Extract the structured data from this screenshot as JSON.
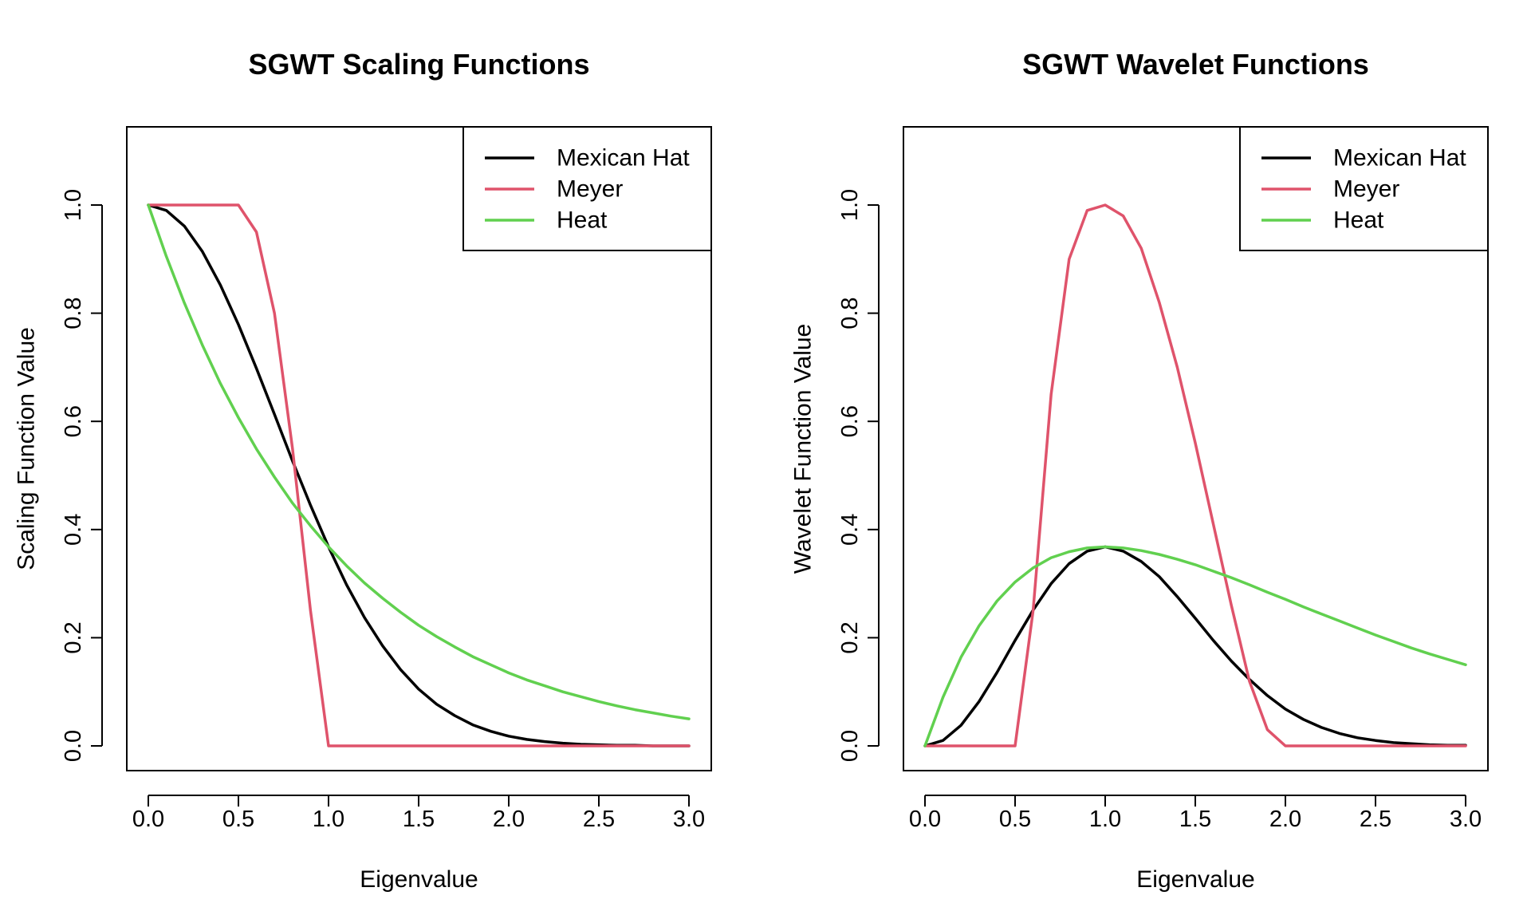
{
  "colors": {
    "mexican_hat": "#000000",
    "meyer": "#DF536B",
    "heat": "#61D04F"
  },
  "chart_data": [
    {
      "type": "line",
      "title": "SGWT Scaling Functions",
      "xlabel": "Eigenvalue",
      "ylabel": "Scaling Function Value",
      "xlim": [
        0,
        3
      ],
      "ylim": [
        0,
        1.1
      ],
      "xticks": [
        "0.0",
        "0.5",
        "1.0",
        "1.5",
        "2.0",
        "2.5",
        "3.0"
      ],
      "yticks": [
        "0.0",
        "0.2",
        "0.4",
        "0.6",
        "0.8",
        "1.0"
      ],
      "grid": false,
      "legend_position": "top-right",
      "x": [
        0,
        0.1,
        0.2,
        0.3,
        0.4,
        0.5,
        0.6,
        0.7,
        0.8,
        0.9,
        1.0,
        1.1,
        1.2,
        1.3,
        1.4,
        1.5,
        1.6,
        1.7,
        1.8,
        1.9,
        2.0,
        2.1,
        2.2,
        2.3,
        2.4,
        2.5,
        2.6,
        2.7,
        2.8,
        2.9,
        3.0
      ],
      "series": [
        {
          "name": "Mexican Hat",
          "color_key": "mexican_hat",
          "values": [
            1.0,
            0.99,
            0.961,
            0.914,
            0.852,
            0.779,
            0.698,
            0.613,
            0.527,
            0.445,
            0.368,
            0.298,
            0.237,
            0.185,
            0.141,
            0.105,
            0.077,
            0.056,
            0.039,
            0.027,
            0.018,
            0.012,
            0.008,
            0.005,
            0.003,
            0.002,
            0.001,
            0.001,
            0.0,
            0.0,
            0.0
          ]
        },
        {
          "name": "Meyer",
          "color_key": "meyer",
          "values": [
            1.0,
            1.0,
            1.0,
            1.0,
            1.0,
            1.0,
            0.95,
            0.8,
            0.55,
            0.25,
            0.0,
            0.0,
            0.0,
            0.0,
            0.0,
            0.0,
            0.0,
            0.0,
            0.0,
            0.0,
            0.0,
            0.0,
            0.0,
            0.0,
            0.0,
            0.0,
            0.0,
            0.0,
            0.0,
            0.0,
            0.0
          ]
        },
        {
          "name": "Heat",
          "color_key": "heat",
          "values": [
            1.0,
            0.905,
            0.819,
            0.741,
            0.67,
            0.607,
            0.549,
            0.497,
            0.449,
            0.407,
            0.368,
            0.333,
            0.301,
            0.273,
            0.247,
            0.223,
            0.202,
            0.183,
            0.165,
            0.15,
            0.135,
            0.122,
            0.111,
            0.1,
            0.091,
            0.082,
            0.074,
            0.067,
            0.061,
            0.055,
            0.05
          ]
        }
      ]
    },
    {
      "type": "line",
      "title": "SGWT Wavelet Functions",
      "xlabel": "Eigenvalue",
      "ylabel": "Wavelet Function Value",
      "xlim": [
        0,
        3
      ],
      "ylim": [
        0,
        1.1
      ],
      "xticks": [
        "0.0",
        "0.5",
        "1.0",
        "1.5",
        "2.0",
        "2.5",
        "3.0"
      ],
      "yticks": [
        "0.0",
        "0.2",
        "0.4",
        "0.6",
        "0.8",
        "1.0"
      ],
      "grid": false,
      "legend_position": "top-right",
      "x": [
        0,
        0.1,
        0.2,
        0.3,
        0.4,
        0.5,
        0.6,
        0.7,
        0.8,
        0.9,
        1.0,
        1.1,
        1.2,
        1.3,
        1.4,
        1.5,
        1.6,
        1.7,
        1.8,
        1.9,
        2.0,
        2.1,
        2.2,
        2.3,
        2.4,
        2.5,
        2.6,
        2.7,
        2.8,
        2.9,
        3.0
      ],
      "series": [
        {
          "name": "Mexican Hat",
          "color_key": "mexican_hat",
          "values": [
            0.0,
            0.01,
            0.038,
            0.082,
            0.136,
            0.195,
            0.251,
            0.3,
            0.337,
            0.36,
            0.368,
            0.36,
            0.341,
            0.313,
            0.276,
            0.236,
            0.195,
            0.157,
            0.123,
            0.093,
            0.068,
            0.049,
            0.034,
            0.023,
            0.015,
            0.01,
            0.006,
            0.004,
            0.002,
            0.001,
            0.001
          ]
        },
        {
          "name": "Meyer",
          "color_key": "meyer",
          "values": [
            0.0,
            0.0,
            0.0,
            0.0,
            0.0,
            0.0,
            0.25,
            0.65,
            0.9,
            0.99,
            1.0,
            0.98,
            0.92,
            0.82,
            0.7,
            0.56,
            0.41,
            0.26,
            0.12,
            0.03,
            0.0,
            0.0,
            0.0,
            0.0,
            0.0,
            0.0,
            0.0,
            0.0,
            0.0,
            0.0,
            0.0
          ]
        },
        {
          "name": "Heat",
          "color_key": "heat",
          "values": [
            0.0,
            0.09,
            0.164,
            0.222,
            0.268,
            0.303,
            0.329,
            0.348,
            0.359,
            0.366,
            0.368,
            0.366,
            0.361,
            0.354,
            0.345,
            0.335,
            0.323,
            0.311,
            0.298,
            0.284,
            0.271,
            0.257,
            0.244,
            0.231,
            0.218,
            0.205,
            0.193,
            0.181,
            0.17,
            0.16,
            0.15
          ]
        }
      ]
    }
  ]
}
